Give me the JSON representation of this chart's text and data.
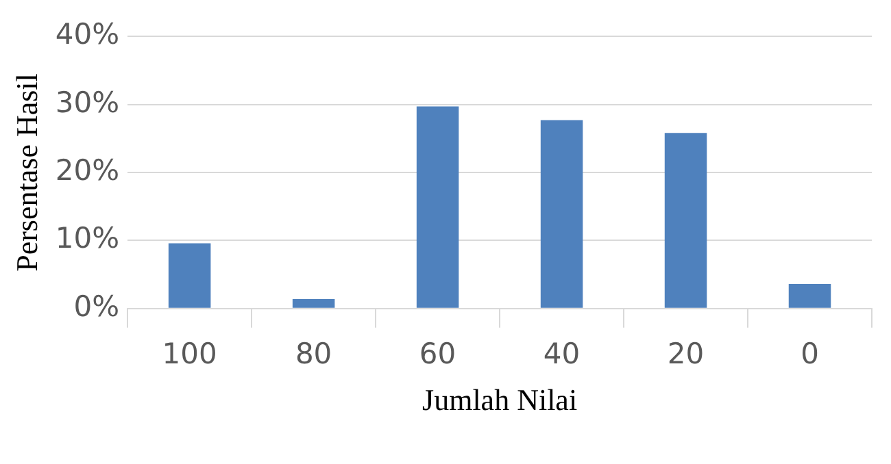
{
  "chart_data": {
    "type": "bar",
    "xlabel": "Jumlah Nilai",
    "ylabel": "Persentase Hasil",
    "categories": [
      "100",
      "80",
      "60",
      "40",
      "20",
      "0"
    ],
    "values": [
      9.6,
      1.4,
      29.7,
      27.7,
      25.8,
      3.6
    ],
    "color": "#4f81bd",
    "ylim": [
      0,
      40
    ],
    "yticks": [
      {
        "value": 0,
        "label": "0%"
      },
      {
        "value": 10,
        "label": "10%"
      },
      {
        "value": 20,
        "label": "20%"
      },
      {
        "value": 30,
        "label": "30%"
      },
      {
        "value": 40,
        "label": "40%"
      }
    ],
    "grid": "y",
    "legend": false
  }
}
